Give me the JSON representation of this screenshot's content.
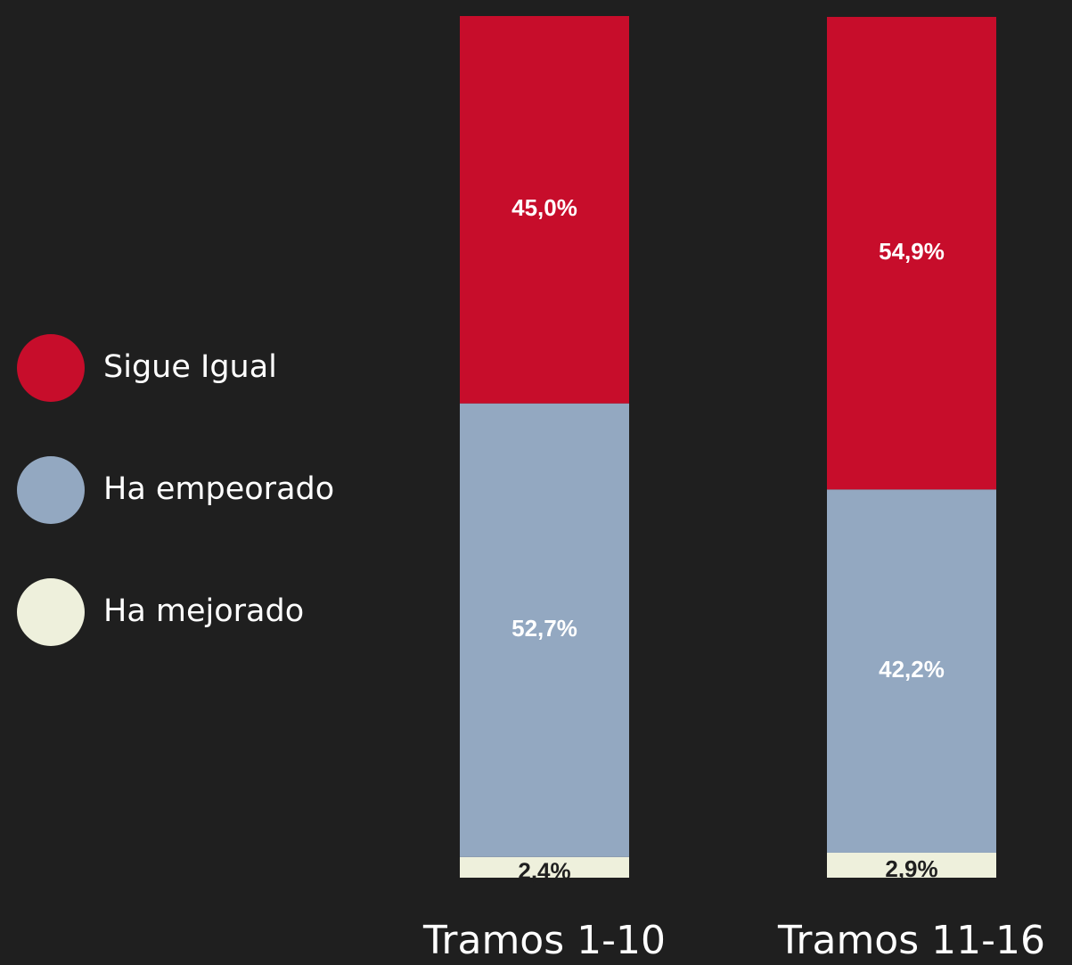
{
  "chart_data": {
    "type": "stacked_bar",
    "categories": [
      "Tramos 1-10",
      "Tramos 11-16"
    ],
    "series": [
      {
        "name": "Sigue Igual",
        "color": "#c70d2b",
        "values": [
          45.0,
          54.9
        ],
        "value_labels": [
          "45,0%",
          "54,9%"
        ]
      },
      {
        "name": "Ha empeorado",
        "color": "#93a8c1",
        "values": [
          52.7,
          42.2
        ],
        "value_labels": [
          "52,7%",
          "42,2%"
        ]
      },
      {
        "name": "Ha mejorado",
        "color": "#eef0dc",
        "values": [
          2.4,
          2.9
        ],
        "value_labels": [
          "2,4%",
          "2,9%"
        ]
      }
    ]
  }
}
